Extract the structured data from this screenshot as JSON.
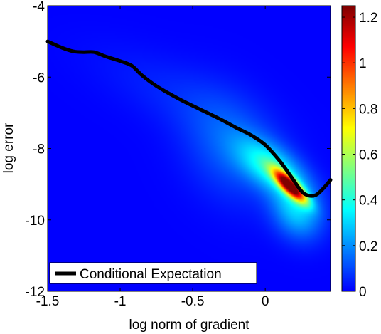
{
  "chart_data": {
    "type": "heatmap",
    "title": "",
    "xlabel": "log norm of gradient",
    "ylabel": "log error",
    "xlim": [
      -1.5,
      0.45
    ],
    "ylim": [
      -12,
      -4
    ],
    "xticks": [
      -1.5,
      -1,
      -0.5,
      0
    ],
    "xtick_labels": [
      "-1.5",
      "-1",
      "-0.5",
      "0"
    ],
    "yticks": [
      -12,
      -10,
      -8,
      -6,
      -4
    ],
    "ytick_labels": [
      "-12",
      "-10",
      "-8",
      "-6",
      "-4"
    ],
    "colorbar": {
      "range": [
        0,
        1.25
      ],
      "ticks": [
        0,
        0.2,
        0.4,
        0.6,
        0.8,
        1,
        1.2
      ],
      "tick_labels": [
        "0",
        "0.2",
        "0.4",
        "0.6",
        "0.8",
        "1",
        "1.2"
      ],
      "colormap": "jet"
    },
    "density_blobs": [
      {
        "cx": 0.17,
        "cy": -9.05,
        "sx": 0.075,
        "sy": 0.3,
        "rho": -0.8,
        "amp": 1.18
      },
      {
        "cx": 0.05,
        "cy": -8.55,
        "sx": 0.16,
        "sy": 0.55,
        "rho": -0.55,
        "amp": 0.36
      },
      {
        "cx": 0.22,
        "cy": -9.75,
        "sx": 0.12,
        "sy": 0.55,
        "rho": -0.2,
        "amp": 0.28
      },
      {
        "cx": -0.25,
        "cy": -8.0,
        "sx": 0.22,
        "sy": 1.05,
        "rho": -0.25,
        "amp": 0.12
      },
      {
        "cx": -0.55,
        "cy": -6.6,
        "sx": 0.42,
        "sy": 0.95,
        "rho": -0.7,
        "amp": 0.05
      }
    ],
    "series": [
      {
        "name": "Conditional Expectation",
        "color": "#000000",
        "x": [
          -1.5,
          -1.4,
          -1.32,
          -1.25,
          -1.18,
          -1.1,
          -1.0,
          -0.92,
          -0.85,
          -0.75,
          -0.6,
          -0.45,
          -0.3,
          -0.2,
          -0.1,
          0.0,
          0.1,
          0.18,
          0.25,
          0.3,
          0.35,
          0.4,
          0.45
        ],
        "y": [
          -5.0,
          -5.18,
          -5.28,
          -5.3,
          -5.3,
          -5.42,
          -5.55,
          -5.68,
          -5.95,
          -6.25,
          -6.6,
          -6.9,
          -7.2,
          -7.42,
          -7.62,
          -7.9,
          -8.35,
          -8.8,
          -9.2,
          -9.32,
          -9.3,
          -9.12,
          -8.88
        ]
      }
    ],
    "legend": {
      "position": "bottom-left",
      "entries": [
        "Conditional Expectation"
      ]
    },
    "grid": false
  }
}
